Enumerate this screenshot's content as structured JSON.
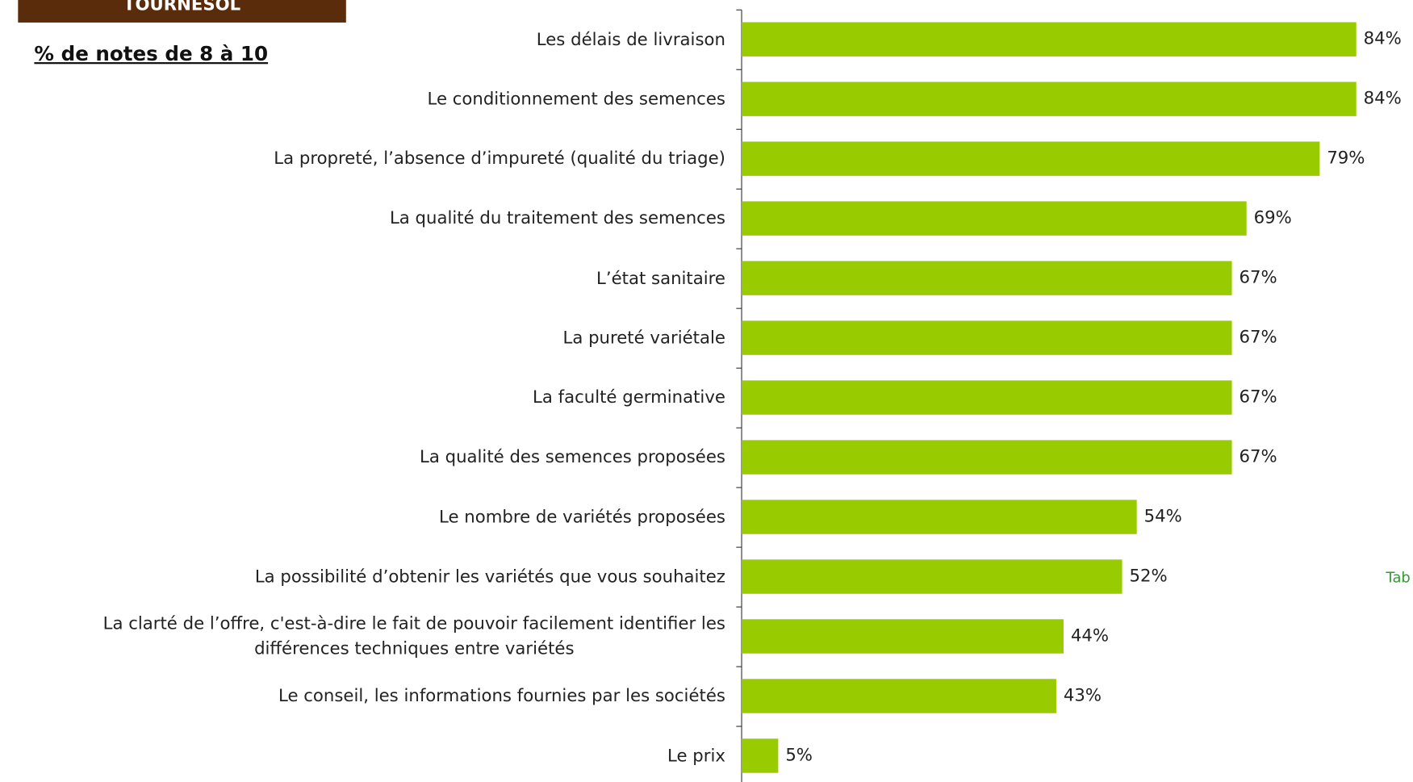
{
  "chart_data": {
    "type": "bar",
    "orientation": "horizontal",
    "title": "TOURNESOL",
    "subtitle": "% de notes de 8 à 10",
    "note": "Tab",
    "categories": [
      "Les délais de livraison",
      "Le conditionnement des semences",
      "La propreté, l’absence d’impureté (qualité du triage)",
      "La qualité du traitement des semences",
      "L’état sanitaire",
      "La pureté variétale",
      "La faculté germinative",
      "La qualité des semences proposées",
      "Le nombre de variétés proposées",
      "La possibilité d’obtenir les variétés que vous souhaitez",
      "La clarté de l’offre, c'est-à-dire le fait de pouvoir facilement identifier les\ndifférences techniques entre variétés",
      "Le conseil, les informations fournies par les sociétés",
      "Le prix"
    ],
    "values": [
      84,
      84,
      79,
      69,
      67,
      67,
      67,
      67,
      54,
      52,
      44,
      43,
      5
    ],
    "value_labels": [
      "84%",
      "84%",
      "79%",
      "69%",
      "67%",
      "67%",
      "67%",
      "67%",
      "54%",
      "52%",
      "44%",
      "43%",
      "5%"
    ],
    "color": "#99cc00",
    "xlim": [
      0,
      100
    ]
  }
}
